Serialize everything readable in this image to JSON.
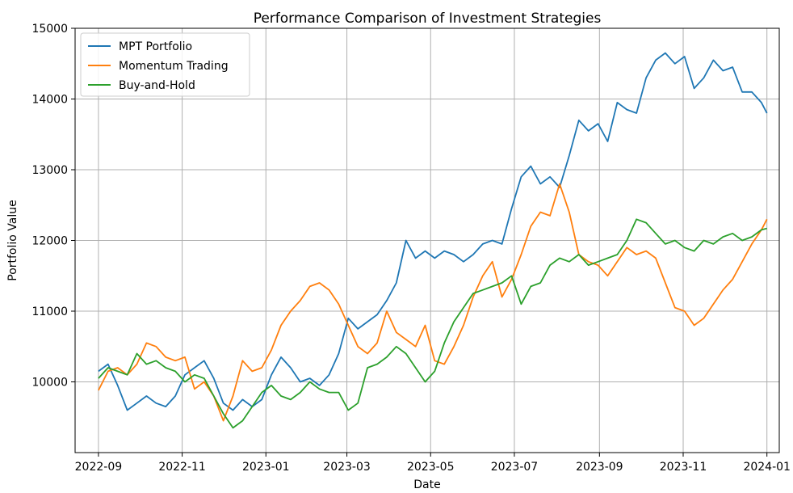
{
  "chart_data": {
    "type": "line",
    "title": "Performance Comparison of Investment Strategies",
    "xlabel": "Date",
    "ylabel": "Portfolio Value",
    "xlim": [
      "2022-08-15",
      "2024-01-10"
    ],
    "ylim": [
      9000,
      15000
    ],
    "x_ticks": [
      "2022-09",
      "2022-11",
      "2023-01",
      "2023-03",
      "2023-05",
      "2023-07",
      "2023-09",
      "2023-11",
      "2024-01"
    ],
    "y_ticks": [
      10000,
      11000,
      12000,
      13000,
      14000,
      15000
    ],
    "grid": true,
    "legend": "top-left",
    "series": [
      {
        "name": "MPT Portfolio",
        "color": "#1f77b4",
        "x": [
          "2022-09-01",
          "2022-09-08",
          "2022-09-15",
          "2022-09-22",
          "2022-09-29",
          "2022-10-06",
          "2022-10-13",
          "2022-10-20",
          "2022-10-27",
          "2022-11-03",
          "2022-11-10",
          "2022-11-17",
          "2022-11-24",
          "2022-12-01",
          "2022-12-08",
          "2022-12-15",
          "2022-12-22",
          "2022-12-29",
          "2023-01-05",
          "2023-01-12",
          "2023-01-19",
          "2023-01-26",
          "2023-02-02",
          "2023-02-09",
          "2023-02-16",
          "2023-02-23",
          "2023-03-02",
          "2023-03-09",
          "2023-03-16",
          "2023-03-23",
          "2023-03-30",
          "2023-04-06",
          "2023-04-13",
          "2023-04-20",
          "2023-04-27",
          "2023-05-04",
          "2023-05-11",
          "2023-05-18",
          "2023-05-25",
          "2023-06-01",
          "2023-06-08",
          "2023-06-15",
          "2023-06-22",
          "2023-06-29",
          "2023-07-06",
          "2023-07-13",
          "2023-07-20",
          "2023-07-27",
          "2023-08-03",
          "2023-08-10",
          "2023-08-17",
          "2023-08-24",
          "2023-08-31",
          "2023-09-07",
          "2023-09-14",
          "2023-09-21",
          "2023-09-28",
          "2023-10-05",
          "2023-10-12",
          "2023-10-19",
          "2023-10-26",
          "2023-11-02",
          "2023-11-09",
          "2023-11-16",
          "2023-11-23",
          "2023-11-30",
          "2023-12-07",
          "2023-12-14",
          "2023-12-21",
          "2023-12-28",
          "2024-01-01"
        ],
        "values": [
          10150,
          10250,
          9950,
          9600,
          9700,
          9800,
          9700,
          9650,
          9800,
          10100,
          10200,
          10300,
          10050,
          9700,
          9600,
          9750,
          9650,
          9750,
          10100,
          10350,
          10200,
          10000,
          10050,
          9950,
          10100,
          10400,
          10900,
          10750,
          10850,
          10950,
          11150,
          11400,
          12000,
          11750,
          11850,
          11750,
          11850,
          11800,
          11700,
          11800,
          11950,
          12000,
          11950,
          12450,
          12900,
          13050,
          12800,
          12900,
          12750,
          13200,
          13700,
          13550,
          13650,
          13400,
          13950,
          13850,
          13800,
          14300,
          14550,
          14650,
          14500,
          14600,
          14150,
          14300,
          14550,
          14400,
          14450,
          14100,
          14100,
          13950,
          13800
        ]
      },
      {
        "name": "Momentum Trading",
        "color": "#ff7f0e",
        "x": [
          "2022-09-01",
          "2022-09-08",
          "2022-09-15",
          "2022-09-22",
          "2022-09-29",
          "2022-10-06",
          "2022-10-13",
          "2022-10-20",
          "2022-10-27",
          "2022-11-03",
          "2022-11-10",
          "2022-11-17",
          "2022-11-24",
          "2022-12-01",
          "2022-12-08",
          "2022-12-15",
          "2022-12-22",
          "2022-12-29",
          "2023-01-05",
          "2023-01-12",
          "2023-01-19",
          "2023-01-26",
          "2023-02-02",
          "2023-02-09",
          "2023-02-16",
          "2023-02-23",
          "2023-03-02",
          "2023-03-09",
          "2023-03-16",
          "2023-03-23",
          "2023-03-30",
          "2023-04-06",
          "2023-04-13",
          "2023-04-20",
          "2023-04-27",
          "2023-05-04",
          "2023-05-11",
          "2023-05-18",
          "2023-05-25",
          "2023-06-01",
          "2023-06-08",
          "2023-06-15",
          "2023-06-22",
          "2023-06-29",
          "2023-07-06",
          "2023-07-13",
          "2023-07-20",
          "2023-07-27",
          "2023-08-03",
          "2023-08-10",
          "2023-08-17",
          "2023-08-24",
          "2023-08-31",
          "2023-09-07",
          "2023-09-14",
          "2023-09-21",
          "2023-09-28",
          "2023-10-05",
          "2023-10-12",
          "2023-10-19",
          "2023-10-26",
          "2023-11-02",
          "2023-11-09",
          "2023-11-16",
          "2023-11-23",
          "2023-11-30",
          "2023-12-07",
          "2023-12-14",
          "2023-12-21",
          "2023-12-28",
          "2024-01-01"
        ],
        "values": [
          9880,
          10150,
          10200,
          10100,
          10250,
          10550,
          10500,
          10350,
          10300,
          10350,
          9900,
          10000,
          9800,
          9450,
          9800,
          10300,
          10150,
          10200,
          10450,
          10800,
          11000,
          11150,
          11350,
          11400,
          11300,
          11100,
          10800,
          10500,
          10400,
          10550,
          11000,
          10700,
          10600,
          10500,
          10800,
          10300,
          10250,
          10500,
          10800,
          11200,
          11500,
          11700,
          11200,
          11450,
          11800,
          12200,
          12400,
          12350,
          12800,
          12400,
          11800,
          11700,
          11650,
          11500,
          11700,
          11900,
          11800,
          11850,
          11750,
          11400,
          11050,
          11000,
          10800,
          10900,
          11100,
          11300,
          11450,
          11700,
          11950,
          12150,
          12300
        ]
      },
      {
        "name": "Buy-and-Hold",
        "color": "#2ca02c",
        "x": [
          "2022-09-01",
          "2022-09-08",
          "2022-09-15",
          "2022-09-22",
          "2022-09-29",
          "2022-10-06",
          "2022-10-13",
          "2022-10-20",
          "2022-10-27",
          "2022-11-03",
          "2022-11-10",
          "2022-11-17",
          "2022-11-24",
          "2022-12-01",
          "2022-12-08",
          "2022-12-15",
          "2022-12-22",
          "2022-12-29",
          "2023-01-05",
          "2023-01-12",
          "2023-01-19",
          "2023-01-26",
          "2023-02-02",
          "2023-02-09",
          "2023-02-16",
          "2023-02-23",
          "2023-03-02",
          "2023-03-09",
          "2023-03-16",
          "2023-03-23",
          "2023-03-30",
          "2023-04-06",
          "2023-04-13",
          "2023-04-20",
          "2023-04-27",
          "2023-05-04",
          "2023-05-11",
          "2023-05-18",
          "2023-05-25",
          "2023-06-01",
          "2023-06-08",
          "2023-06-15",
          "2023-06-22",
          "2023-06-29",
          "2023-07-06",
          "2023-07-13",
          "2023-07-20",
          "2023-07-27",
          "2023-08-03",
          "2023-08-10",
          "2023-08-17",
          "2023-08-24",
          "2023-08-31",
          "2023-09-07",
          "2023-09-14",
          "2023-09-21",
          "2023-09-28",
          "2023-10-05",
          "2023-10-12",
          "2023-10-19",
          "2023-10-26",
          "2023-11-02",
          "2023-11-09",
          "2023-11-16",
          "2023-11-23",
          "2023-11-30",
          "2023-12-07",
          "2023-12-14",
          "2023-12-21",
          "2023-12-28",
          "2024-01-01"
        ],
        "values": [
          10050,
          10200,
          10150,
          10100,
          10400,
          10250,
          10300,
          10200,
          10150,
          10000,
          10100,
          10050,
          9800,
          9550,
          9350,
          9450,
          9650,
          9850,
          9950,
          9800,
          9750,
          9850,
          10000,
          9900,
          9850,
          9850,
          9600,
          9700,
          10200,
          10250,
          10350,
          10500,
          10400,
          10200,
          10000,
          10150,
          10550,
          10850,
          11050,
          11250,
          11300,
          11350,
          11400,
          11500,
          11100,
          11350,
          11400,
          11650,
          11750,
          11700,
          11800,
          11650,
          11700,
          11750,
          11800,
          12000,
          12300,
          12250,
          12100,
          11950,
          12000,
          11900,
          11850,
          12000,
          11950,
          12050,
          12100,
          12000,
          12050,
          12150,
          12170
        ]
      }
    ]
  }
}
